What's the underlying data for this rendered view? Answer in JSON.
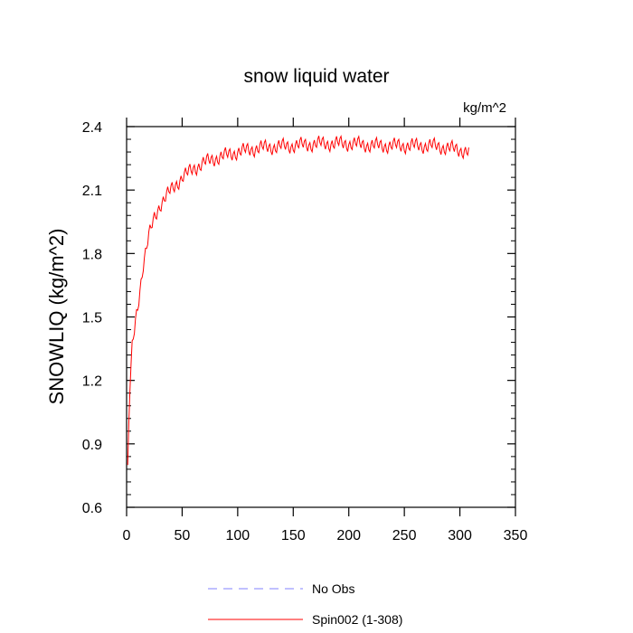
{
  "chart_data": {
    "type": "line",
    "title": "snow liquid water",
    "units_label": "kg/m^2",
    "ylabel": "SNOWLIQ  (kg/m^2)",
    "xlabel": "",
    "xlim": [
      0,
      350
    ],
    "ylim": [
      0.6,
      2.4
    ],
    "x_ticks": [
      0,
      50,
      100,
      150,
      200,
      250,
      300,
      350
    ],
    "x_tick_labels": [
      "0",
      "50",
      "100",
      "150",
      "200",
      "250",
      "300",
      "350"
    ],
    "y_ticks": [
      0.6,
      0.9,
      1.2,
      1.5,
      1.8,
      2.1,
      2.4
    ],
    "y_tick_labels": [
      "0.6",
      "0.9",
      "1.2",
      "1.5",
      "1.8",
      "2.1",
      "2.4"
    ],
    "grid": false,
    "legend_position": "bottom-center",
    "series": [
      {
        "name": "No Obs",
        "color": "#8080ff",
        "line_style": "dashed",
        "x": [],
        "y": []
      },
      {
        "name": "Spin002 (1-308)",
        "color": "#ff0000",
        "line_style": "solid",
        "oscillation_amplitude": 0.025,
        "x": [
          1,
          2,
          3,
          5,
          8,
          10,
          15,
          20,
          25,
          30,
          40,
          50,
          60,
          70,
          80,
          100,
          120,
          150,
          175,
          200,
          225,
          250,
          275,
          300,
          308
        ],
        "y": [
          0.8,
          1.0,
          1.15,
          1.35,
          1.48,
          1.55,
          1.75,
          1.88,
          1.97,
          2.03,
          2.1,
          2.16,
          2.2,
          2.23,
          2.25,
          2.28,
          2.3,
          2.31,
          2.32,
          2.32,
          2.31,
          2.31,
          2.31,
          2.29,
          2.28
        ]
      }
    ]
  }
}
